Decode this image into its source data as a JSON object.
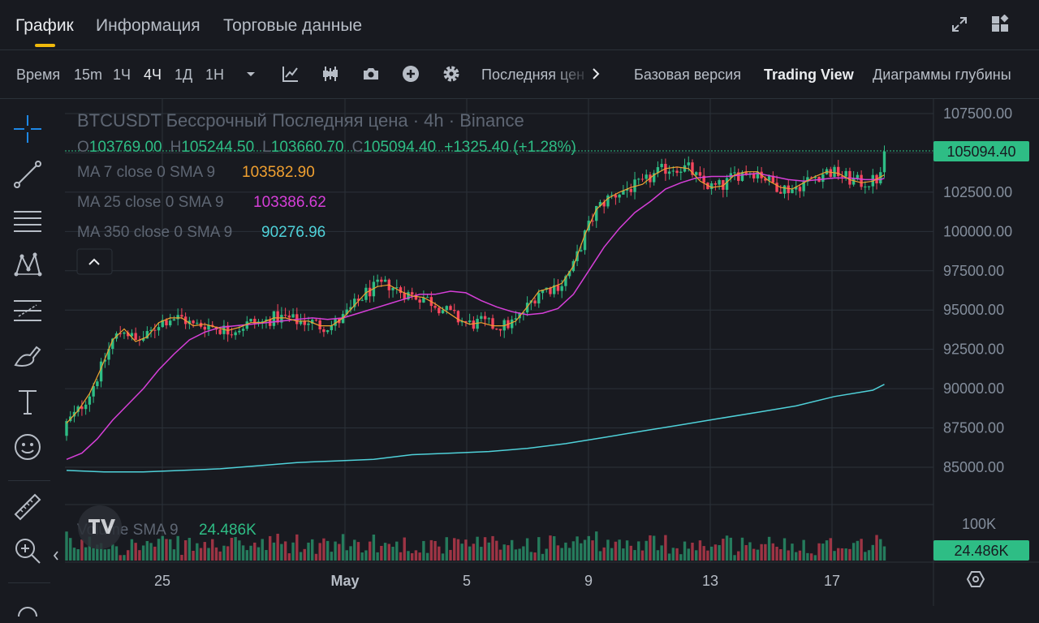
{
  "tabs": [
    {
      "label": "График",
      "active": true
    },
    {
      "label": "Информация",
      "active": false
    },
    {
      "label": "Торговые данные",
      "active": false
    }
  ],
  "toolbar": {
    "time_label": "Время",
    "intervals": [
      "15m",
      "1Ч",
      "4Ч",
      "1Д",
      "1Н"
    ],
    "selected_interval": "4Ч",
    "last_price_label": "Последняя цен",
    "views": [
      "Базовая версия",
      "Trading View",
      "Диаграммы глубины"
    ],
    "selected_view": "Trading View"
  },
  "legend": {
    "title": "BTCUSDT Бессрочный Последняя цена · 4h · Binance",
    "open_label": "O",
    "open": "103769.00",
    "high_label": "H",
    "high": "105244.50",
    "low_label": "L",
    "low": "103660.70",
    "close_label": "C",
    "close": "105094.40",
    "change": "+1325.40 (+1.28%)",
    "ma7_label": "MA 7 close 0 SMA 9",
    "ma7_value": "103582.90",
    "ma25_label": "MA 25 close 0 SMA 9",
    "ma25_value": "103386.62",
    "ma350_label": "MA 350 close 0 SMA 9",
    "ma350_value": "90276.96",
    "volume_label": "Volume SMA 9",
    "volume_value": "24.486K"
  },
  "price_axis": {
    "ticks": [
      "107500.00",
      "105000.00",
      "102500.00",
      "100000.00",
      "97500.00",
      "95000.00",
      "92500.00",
      "90000.00",
      "87500.00",
      "85000.00"
    ],
    "current_price": "105094.40",
    "volume_tick": "100K",
    "current_volume": "24.486K"
  },
  "time_axis": {
    "ticks": [
      "25",
      "May",
      "5",
      "9",
      "13",
      "17"
    ]
  },
  "colors": {
    "up": "#2ebd85",
    "down": "#f6465d",
    "ma7": "#f0a030",
    "ma25": "#d63fd8",
    "ma350": "#4fd1d9",
    "accent": "#f0b90b"
  },
  "chart_data": {
    "type": "candlestick",
    "interval": "4h",
    "y_range": [
      84000,
      108500
    ],
    "ma7_series": [
      [
        0,
        87800
      ],
      [
        3,
        88600
      ],
      [
        6,
        89700
      ],
      [
        9,
        91300
      ],
      [
        12,
        93100
      ],
      [
        15,
        93800
      ],
      [
        18,
        93000
      ],
      [
        21,
        93300
      ],
      [
        24,
        94200
      ],
      [
        27,
        94500
      ],
      [
        30,
        94500
      ],
      [
        33,
        94000
      ],
      [
        36,
        94100
      ],
      [
        39,
        93900
      ],
      [
        42,
        93700
      ],
      [
        45,
        93900
      ],
      [
        48,
        94200
      ],
      [
        51,
        94200
      ],
      [
        54,
        94500
      ],
      [
        57,
        94500
      ],
      [
        60,
        94300
      ],
      [
        63,
        94300
      ],
      [
        66,
        94000
      ],
      [
        69,
        94000
      ],
      [
        72,
        94500
      ],
      [
        75,
        95300
      ],
      [
        78,
        96100
      ],
      [
        81,
        96500
      ],
      [
        84,
        96600
      ],
      [
        87,
        96200
      ],
      [
        90,
        95900
      ],
      [
        93,
        95800
      ],
      [
        96,
        95400
      ],
      [
        99,
        94900
      ],
      [
        102,
        94400
      ],
      [
        105,
        94100
      ],
      [
        108,
        94200
      ],
      [
        111,
        94000
      ],
      [
        114,
        94000
      ],
      [
        117,
        94300
      ],
      [
        120,
        95200
      ],
      [
        123,
        96200
      ],
      [
        126,
        96400
      ],
      [
        129,
        96700
      ],
      [
        132,
        97800
      ],
      [
        135,
        99800
      ],
      [
        138,
        101400
      ],
      [
        141,
        102100
      ],
      [
        144,
        102500
      ],
      [
        147,
        102800
      ],
      [
        150,
        103000
      ],
      [
        153,
        103600
      ],
      [
        156,
        104000
      ],
      [
        159,
        104100
      ],
      [
        162,
        104000
      ],
      [
        165,
        103200
      ],
      [
        168,
        102800
      ],
      [
        171,
        102900
      ],
      [
        174,
        103600
      ],
      [
        177,
        103800
      ],
      [
        180,
        103800
      ],
      [
        183,
        103200
      ],
      [
        186,
        102800
      ],
      [
        189,
        102700
      ],
      [
        192,
        103100
      ],
      [
        195,
        103500
      ],
      [
        198,
        103800
      ],
      [
        201,
        103700
      ],
      [
        204,
        103300
      ],
      [
        207,
        103100
      ],
      [
        210,
        103200
      ],
      [
        213,
        103600
      ]
    ],
    "ma25_series": [
      [
        0,
        85500
      ],
      [
        4,
        85900
      ],
      [
        8,
        86800
      ],
      [
        12,
        88000
      ],
      [
        16,
        89000
      ],
      [
        20,
        90000
      ],
      [
        24,
        91200
      ],
      [
        28,
        92200
      ],
      [
        32,
        93100
      ],
      [
        36,
        93600
      ],
      [
        40,
        93900
      ],
      [
        44,
        94000
      ],
      [
        48,
        94100
      ],
      [
        52,
        94200
      ],
      [
        56,
        94300
      ],
      [
        60,
        94400
      ],
      [
        64,
        94500
      ],
      [
        68,
        94400
      ],
      [
        72,
        94500
      ],
      [
        76,
        94800
      ],
      [
        80,
        95100
      ],
      [
        84,
        95400
      ],
      [
        88,
        95700
      ],
      [
        92,
        96000
      ],
      [
        96,
        96000
      ],
      [
        100,
        96200
      ],
      [
        104,
        96100
      ],
      [
        108,
        95600
      ],
      [
        112,
        95200
      ],
      [
        116,
        94900
      ],
      [
        120,
        94700
      ],
      [
        124,
        94800
      ],
      [
        128,
        95100
      ],
      [
        132,
        96000
      ],
      [
        136,
        97500
      ],
      [
        140,
        99000
      ],
      [
        144,
        100200
      ],
      [
        148,
        101200
      ],
      [
        152,
        101900
      ],
      [
        156,
        102700
      ],
      [
        160,
        103100
      ],
      [
        164,
        103400
      ],
      [
        168,
        103500
      ],
      [
        172,
        103500
      ],
      [
        176,
        103600
      ],
      [
        180,
        103700
      ],
      [
        184,
        103500
      ],
      [
        188,
        103300
      ],
      [
        192,
        103200
      ],
      [
        196,
        103300
      ],
      [
        200,
        103400
      ],
      [
        204,
        103400
      ],
      [
        208,
        103300
      ],
      [
        212,
        103300
      ],
      [
        213,
        103386
      ]
    ],
    "ma350_series": [
      [
        0,
        84800
      ],
      [
        10,
        84700
      ],
      [
        20,
        84700
      ],
      [
        30,
        84800
      ],
      [
        40,
        84900
      ],
      [
        50,
        85100
      ],
      [
        60,
        85300
      ],
      [
        70,
        85400
      ],
      [
        80,
        85500
      ],
      [
        90,
        85800
      ],
      [
        100,
        85900
      ],
      [
        110,
        86000
      ],
      [
        120,
        86200
      ],
      [
        130,
        86500
      ],
      [
        140,
        86900
      ],
      [
        150,
        87300
      ],
      [
        160,
        87700
      ],
      [
        170,
        88100
      ],
      [
        180,
        88500
      ],
      [
        190,
        88900
      ],
      [
        200,
        89500
      ],
      [
        210,
        89900
      ],
      [
        213,
        90276
      ]
    ]
  }
}
